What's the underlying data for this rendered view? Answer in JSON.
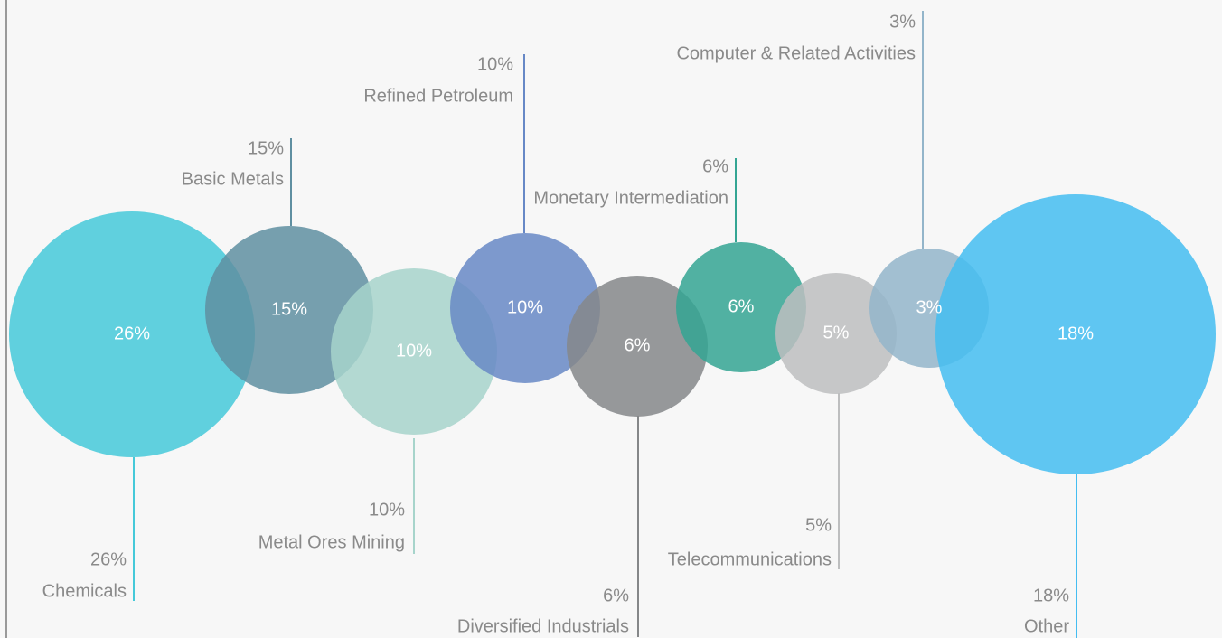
{
  "chart_data": {
    "type": "bubble",
    "categories": [
      "Chemicals",
      "Basic Metals",
      "Metal Ores Mining",
      "Refined Petroleum",
      "Diversified Industrials",
      "Monetary Intermediation",
      "Telecommunications",
      "Computer & Related Activities",
      "Other"
    ],
    "values": [
      26,
      15,
      10,
      10,
      6,
      6,
      5,
      3,
      18
    ],
    "value_labels": [
      "26%",
      "15%",
      "10%",
      "10%",
      "6%",
      "6%",
      "5%",
      "3%",
      "18%"
    ],
    "colors": [
      "#45c9d9",
      "#5f8fa1",
      "#a7d4cb",
      "#6788c6",
      "#858789",
      "#34a593",
      "#bdbebf",
      "#93b5ca",
      "#44bdf1"
    ]
  }
}
